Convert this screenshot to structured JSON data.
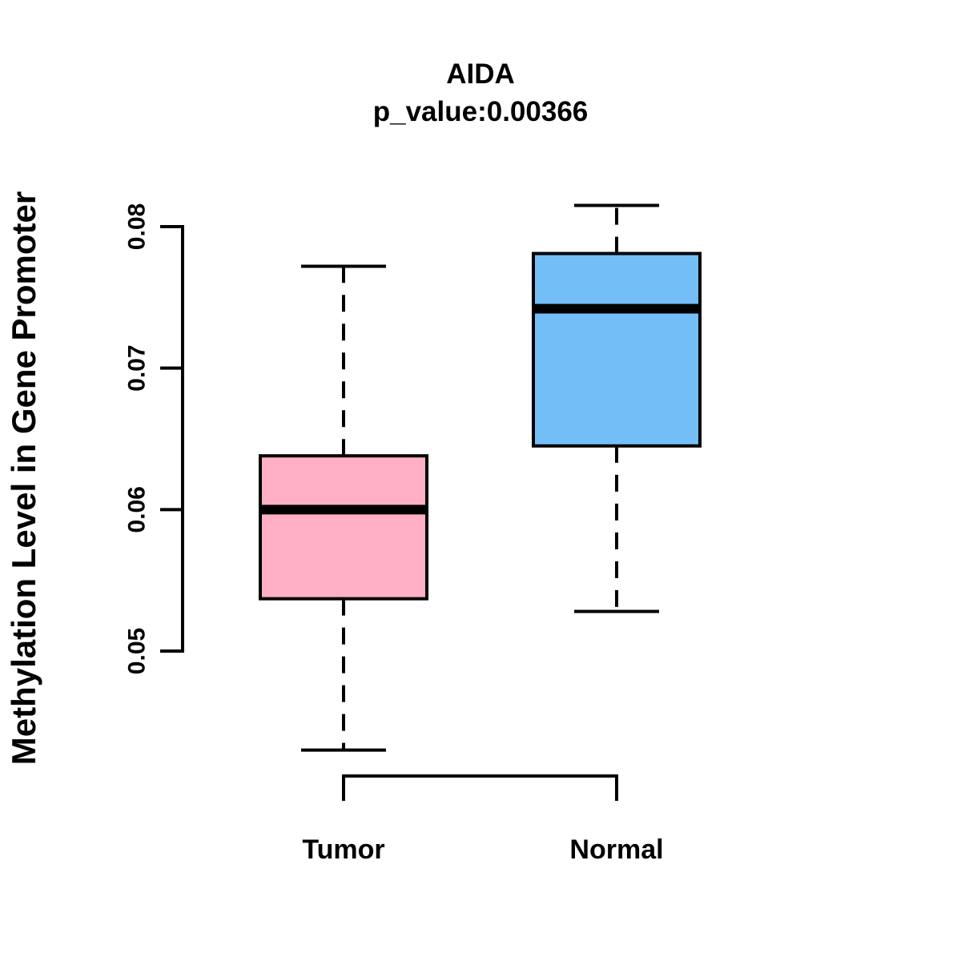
{
  "figure": {
    "background": "#FFFFFF"
  },
  "chart_data": {
    "type": "boxplot",
    "title": "AIDA",
    "subtitle": "p_value:0.00366",
    "ylabel": "Methylation Level in Gene Promoter",
    "xlabel": "",
    "categories": [
      "Tumor",
      "Normal"
    ],
    "y_ticks": [
      {
        "label": "0.05",
        "value": 0.05
      },
      {
        "label": "0.06",
        "value": 0.06
      },
      {
        "label": "0.07",
        "value": 0.07
      },
      {
        "label": "0.08",
        "value": 0.08
      }
    ],
    "y_axis_shown_range": [
      0.05,
      0.08
    ],
    "grid": "off",
    "legend": "none",
    "stroke_color": "#000000",
    "series": [
      {
        "name": "Tumor",
        "fill_color": "#FFB0C4",
        "whisker_low": 0.043,
        "q1": 0.0537,
        "median": 0.06,
        "q3": 0.0638,
        "whisker_high": 0.0772
      },
      {
        "name": "Normal",
        "fill_color": "#74BEF8",
        "whisker_low": 0.0528,
        "q1": 0.0645,
        "median": 0.0742,
        "q3": 0.0781,
        "whisker_high": 0.0815
      }
    ]
  }
}
